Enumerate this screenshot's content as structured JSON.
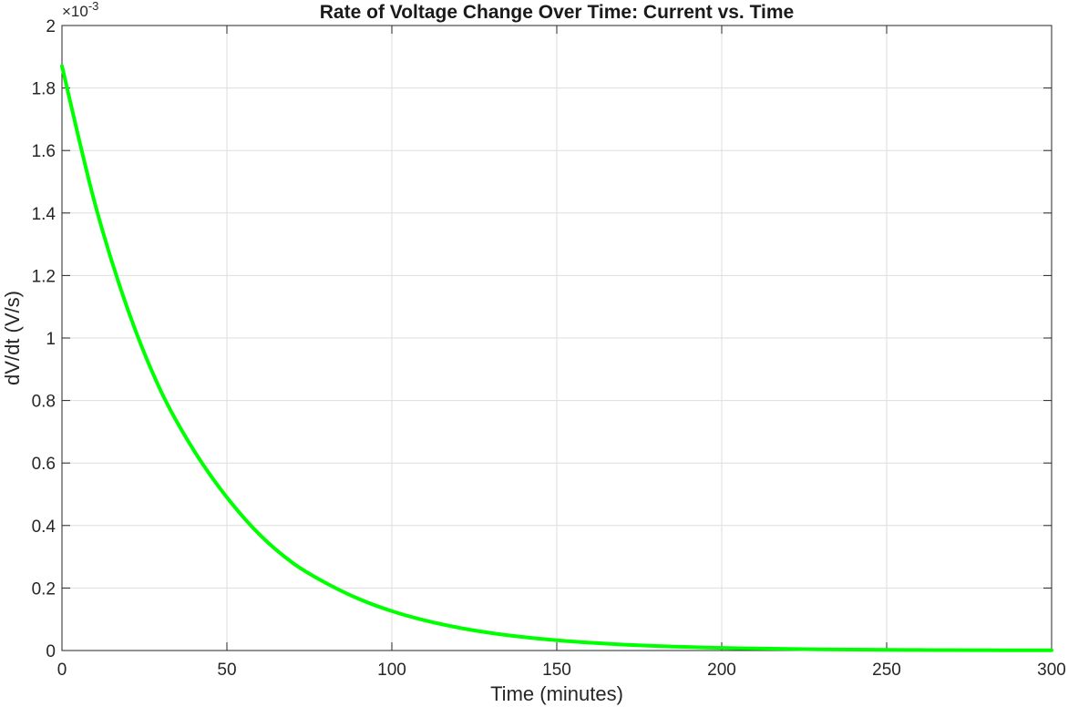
{
  "chart_data": {
    "type": "line",
    "title": "Rate of Voltage Change Over Time: Current vs. Time",
    "xlabel": "Time (minutes)",
    "ylabel": "dV/dt (V/s)",
    "xlim": [
      0,
      300
    ],
    "ylim": [
      0,
      0.002
    ],
    "x_ticks": [
      0,
      50,
      100,
      150,
      200,
      250,
      300
    ],
    "x_tick_labels": [
      "0",
      "50",
      "100",
      "150",
      "200",
      "250",
      "300"
    ],
    "y_ticks": [
      0,
      0.0002,
      0.0004,
      0.0006,
      0.0008,
      0.001,
      0.0012,
      0.0014,
      0.0016,
      0.0018,
      0.002
    ],
    "y_tick_labels": [
      "0",
      "0.2",
      "0.4",
      "0.6",
      "0.8",
      "1",
      "1.2",
      "1.4",
      "1.6",
      "1.8",
      "2"
    ],
    "y_exponent_label": {
      "base": "×10",
      "exponent": "-3"
    },
    "grid": true,
    "series": [
      {
        "color": "#00ff00",
        "x": [
          0,
          10,
          20,
          30,
          40,
          50,
          60,
          70,
          80,
          90,
          100,
          110,
          120,
          130,
          140,
          150,
          160,
          170,
          180,
          190,
          200,
          210,
          220,
          230,
          240,
          250,
          260,
          270,
          280,
          290,
          300
        ],
        "values": [
          0.00187,
          0.00143,
          0.00109,
          0.00083,
          0.00064,
          0.00049,
          0.00037,
          0.00028,
          0.000216,
          0.000165,
          0.000126,
          9.63e-05,
          7.36e-05,
          5.62e-05,
          4.29e-05,
          3.28e-05,
          2.5e-05,
          1.91e-05,
          1.46e-05,
          1.12e-05,
          8.5e-06,
          6.5e-06,
          5e-06,
          3.8e-06,
          2.9e-06,
          2.2e-06,
          1.7e-06,
          1.3e-06,
          1e-06,
          8e-07,
          6e-07
        ]
      }
    ]
  }
}
